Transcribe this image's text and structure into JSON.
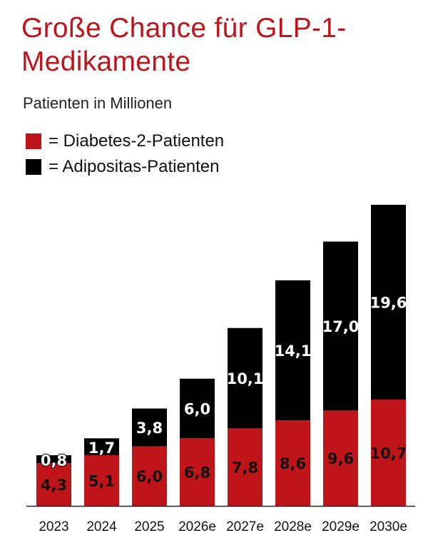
{
  "chart_data": {
    "type": "bar",
    "stacked": true,
    "title": "Große Chance für GLP-1-Medikamente",
    "subtitle": "Patienten in Millionen",
    "categories": [
      "2023",
      "2024",
      "2025",
      "2026e",
      "2027e",
      "2028e",
      "2029e",
      "2030e"
    ],
    "series": [
      {
        "name": "= Diabetes-2-Patienten",
        "color": "#c0141b",
        "label_color": "#111111",
        "values": [
          4.3,
          5.1,
          6.0,
          6.8,
          7.8,
          8.6,
          9.6,
          10.7
        ]
      },
      {
        "name": "= Adipositas-Patienten",
        "color": "#000000",
        "label_color": "#ffffff",
        "values": [
          0.8,
          1.7,
          3.8,
          6.0,
          10.1,
          14.1,
          17.0,
          19.6
        ]
      }
    ],
    "ylim": [
      0,
      30.3
    ],
    "grid": false,
    "legend": "top-left",
    "data_labels": true
  }
}
